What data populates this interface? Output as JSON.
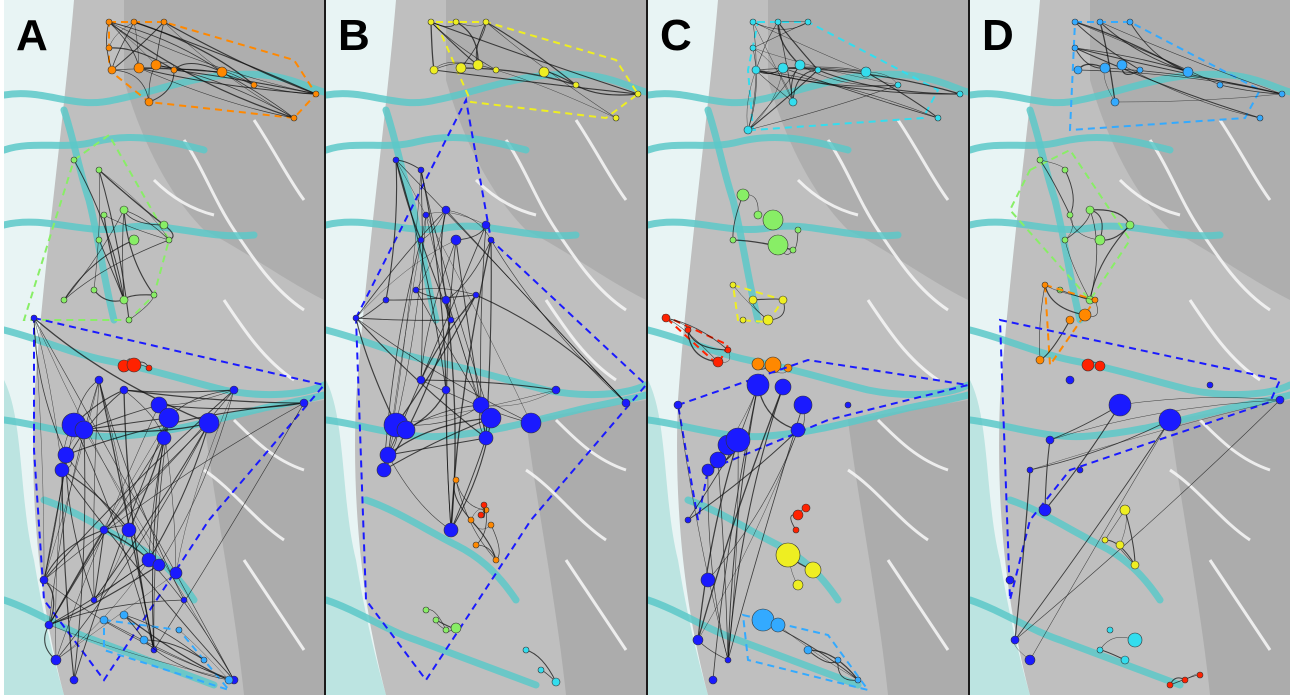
{
  "figure": {
    "panels": [
      {
        "letter": "A"
      },
      {
        "letter": "B"
      },
      {
        "letter": "C"
      },
      {
        "letter": "D"
      }
    ]
  },
  "colors": {
    "blue": "#1a1aff",
    "lightblue": "#33aaff",
    "cyan": "#33ddee",
    "green": "#88ee66",
    "yellow": "#eeee22",
    "orange": "#ff8800",
    "red": "#ff2200",
    "river": "#5cc8c8",
    "terrain": "#bdbdbd"
  }
}
